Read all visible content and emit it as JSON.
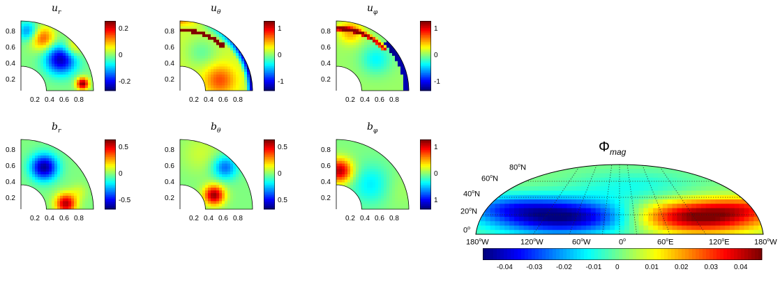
{
  "chart_data": [
    {
      "type": "heatmap",
      "title": "u_r",
      "title_main": "u",
      "title_sub": "r",
      "x_ticks": [
        "0.2",
        "0.4",
        "0.6",
        "0.8"
      ],
      "y_ticks": [
        "0.8",
        "0.6",
        "0.4",
        "0.2"
      ],
      "colorbar_ticks": [
        "0.2",
        "0",
        "-0.2"
      ],
      "colorbar_range": [
        -0.3,
        0.3
      ]
    },
    {
      "type": "heatmap",
      "title": "u_θ",
      "title_main": "u",
      "title_sub": "θ",
      "x_ticks": [
        "0.2",
        "0.4",
        "0.6",
        "0.8"
      ],
      "y_ticks": [
        "0.8",
        "0.6",
        "0.4",
        "0.2"
      ],
      "colorbar_ticks": [
        "1",
        "0",
        "-1"
      ],
      "colorbar_range": [
        -1,
        1
      ]
    },
    {
      "type": "heatmap",
      "title": "u_φ",
      "title_main": "u",
      "title_sub": "φ",
      "x_ticks": [
        "0.2",
        "0.4",
        "0.6",
        "0.8"
      ],
      "y_ticks": [
        "0.8",
        "0.6",
        "0.4",
        "0.2"
      ],
      "colorbar_ticks": [
        "1",
        "0",
        "-1"
      ],
      "colorbar_range": [
        -1,
        1
      ]
    },
    {
      "type": "heatmap",
      "title": "b_r",
      "title_main": "b",
      "title_sub": "r",
      "x_ticks": [
        "0.2",
        "0.4",
        "0.6",
        "0.8"
      ],
      "y_ticks": [
        "0.8",
        "0.6",
        "0.4",
        "0.2"
      ],
      "colorbar_ticks": [
        "0.5",
        "0",
        "-0.5"
      ],
      "colorbar_range": [
        -0.6,
        0.6
      ]
    },
    {
      "type": "heatmap",
      "title": "b_θ",
      "title_main": "b",
      "title_sub": "θ",
      "x_ticks": [
        "0.2",
        "0.4",
        "0.6",
        "0.8"
      ],
      "y_ticks": [
        "0.8",
        "0.6",
        "0.4",
        "0.2"
      ],
      "colorbar_ticks": [
        "0.5",
        "0",
        "0.5"
      ],
      "colorbar_range": [
        -0.6,
        0.6
      ]
    },
    {
      "type": "heatmap",
      "title": "b_φ",
      "title_main": "b",
      "title_sub": "φ",
      "x_ticks": [
        "0.2",
        "0.4",
        "0.6",
        "0.8"
      ],
      "y_ticks": [
        "0.8",
        "0.6",
        "0.4",
        "0.2"
      ],
      "colorbar_ticks": [
        "1",
        "0",
        "1"
      ],
      "colorbar_range": [
        -1.3,
        1.3
      ]
    },
    {
      "type": "heatmap",
      "title": "Φ_mag",
      "title_main": "Φ",
      "title_sub": "mag",
      "lon_labels": [
        "180",
        "120",
        "60",
        "0",
        "60",
        "120",
        "180"
      ],
      "lon_suffix": [
        "W",
        "W",
        "W",
        "",
        "E",
        "E",
        "W"
      ],
      "lat_labels": [
        "0",
        "20",
        "40",
        "60",
        "80"
      ],
      "colorbar_ticks": [
        "-0.04",
        "-0.03",
        "-0.02",
        "-0.01",
        "0",
        "0.01",
        "0.02",
        "0.03",
        "0.04"
      ],
      "colorbar_range": [
        -0.045,
        0.045
      ]
    }
  ]
}
